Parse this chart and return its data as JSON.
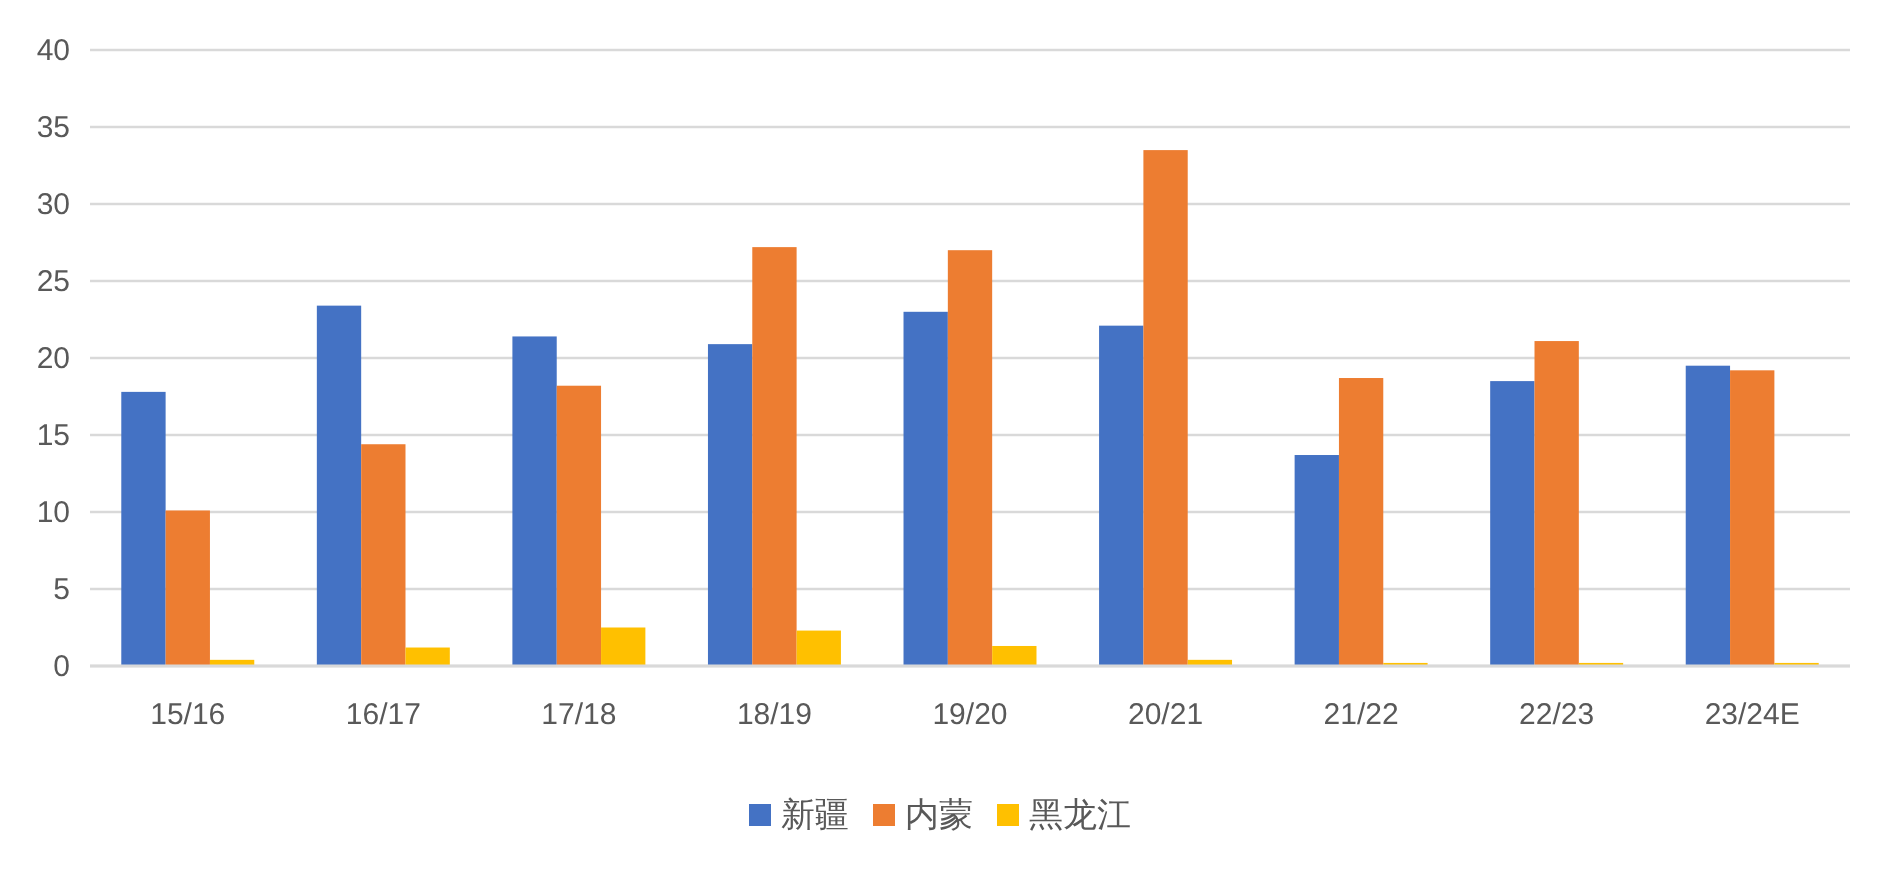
{
  "chart_data": {
    "type": "bar",
    "categories": [
      "15/16",
      "16/17",
      "17/18",
      "18/19",
      "19/20",
      "20/21",
      "21/22",
      "22/23",
      "23/24E"
    ],
    "series": [
      {
        "name": "新疆",
        "color": "#4472c4",
        "values": [
          17.8,
          23.4,
          21.4,
          20.9,
          23.0,
          22.1,
          13.7,
          18.5,
          19.5
        ]
      },
      {
        "name": "内蒙",
        "color": "#ed7d31",
        "values": [
          10.1,
          14.4,
          18.2,
          27.2,
          27.0,
          33.5,
          18.7,
          21.1,
          19.2
        ]
      },
      {
        "name": "黑龙江",
        "color": "#ffc000",
        "values": [
          0.4,
          1.2,
          2.5,
          2.3,
          1.3,
          0.4,
          0.2,
          0.2,
          0.2
        ]
      }
    ],
    "ylim": [
      0,
      40
    ],
    "yticks": [
      0,
      5,
      10,
      15,
      20,
      25,
      30,
      35,
      40
    ],
    "grid": "y",
    "legend": "bottom"
  }
}
